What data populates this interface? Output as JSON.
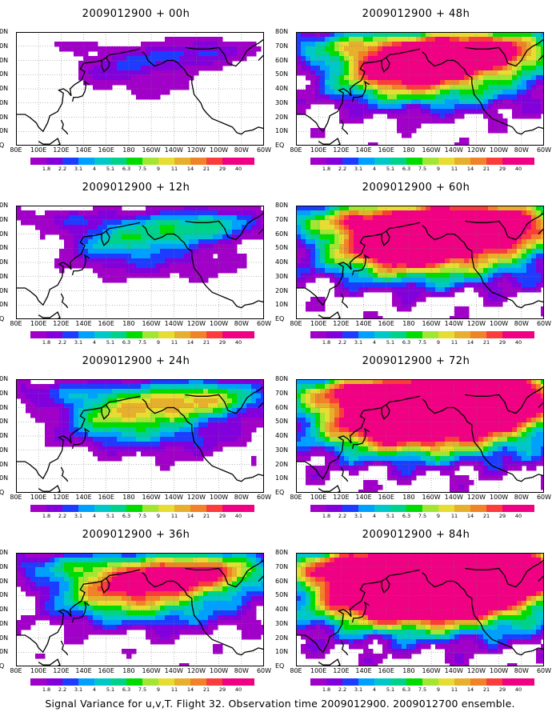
{
  "panels": [
    {
      "title": "2009012900 + 00h",
      "intensity": 0.55
    },
    {
      "title": "2009012900 + 48h",
      "intensity": 2.3
    },
    {
      "title": "2009012900 + 12h",
      "intensity": 1.05
    },
    {
      "title": "2009012900 + 60h",
      "intensity": 2.7
    },
    {
      "title": "2009012900 + 24h",
      "intensity": 1.45
    },
    {
      "title": "2009012900 + 72h",
      "intensity": 3.05
    },
    {
      "title": "2009012900 + 36h",
      "intensity": 1.9
    },
    {
      "title": "2009012900 + 84h",
      "intensity": 3.35
    }
  ],
  "lat_labels": [
    "80N",
    "70N",
    "60N",
    "50N",
    "40N",
    "30N",
    "20N",
    "10N",
    "EQ"
  ],
  "lon_labels": [
    "80E",
    "100E",
    "120E",
    "140E",
    "160E",
    "180",
    "160W",
    "140W",
    "120W",
    "100W",
    "80W",
    "60W"
  ],
  "colorbar": {
    "labels": [
      "1.8",
      "2.2",
      "3.1",
      "4",
      "5.1",
      "6.3",
      "7.5",
      "9",
      "11",
      "14",
      "21",
      "29",
      "40"
    ],
    "colors": [
      "#a000c8",
      "#8200dc",
      "#1e3cff",
      "#00a0ff",
      "#00c8c8",
      "#00d28c",
      "#00dc00",
      "#a0e632",
      "#e6dc32",
      "#e6af2d",
      "#f08228",
      "#fa3c3c",
      "#f00082"
    ]
  },
  "footer": "Signal Variance for u,v,T. Flight 32. Observation time 2009012900. 2009012700 ensemble."
}
